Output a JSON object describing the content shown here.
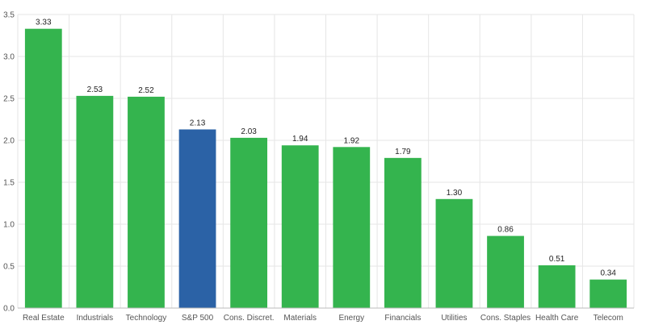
{
  "chart_data": {
    "type": "bar",
    "title": "",
    "xlabel": "",
    "ylabel": "",
    "categories": [
      "Real Estate",
      "Industrials",
      "Technology",
      "S&P 500",
      "Cons. Discret.",
      "Materials",
      "Energy",
      "Financials",
      "Utilities",
      "Cons. Staples",
      "Health Care",
      "Telecom"
    ],
    "values": [
      3.33,
      2.53,
      2.52,
      2.13,
      2.03,
      1.94,
      1.92,
      1.79,
      1.3,
      0.86,
      0.51,
      0.34
    ],
    "data_labels": [
      "3.33",
      "2.53",
      "2.52",
      "2.13",
      "2.03",
      "1.94",
      "1.92",
      "1.79",
      "1.30",
      "0.86",
      "0.51",
      "0.34"
    ],
    "ylim": [
      0,
      3.5
    ],
    "yticks": [
      0,
      0.5,
      1.0,
      1.5,
      2.0,
      2.5,
      3.0,
      3.5
    ],
    "ytick_labels": [
      "0.0",
      "0.5",
      "1.0",
      "1.5",
      "2.0",
      "2.5",
      "3.0",
      "3.5"
    ],
    "grid": true,
    "legend": "none",
    "bar_color": "#34b44e",
    "highlight_category": "S&P 500",
    "highlight_color": "#2b62a6",
    "grid_color": "#e6e6e6",
    "axis_color": "#bbbbbb"
  }
}
